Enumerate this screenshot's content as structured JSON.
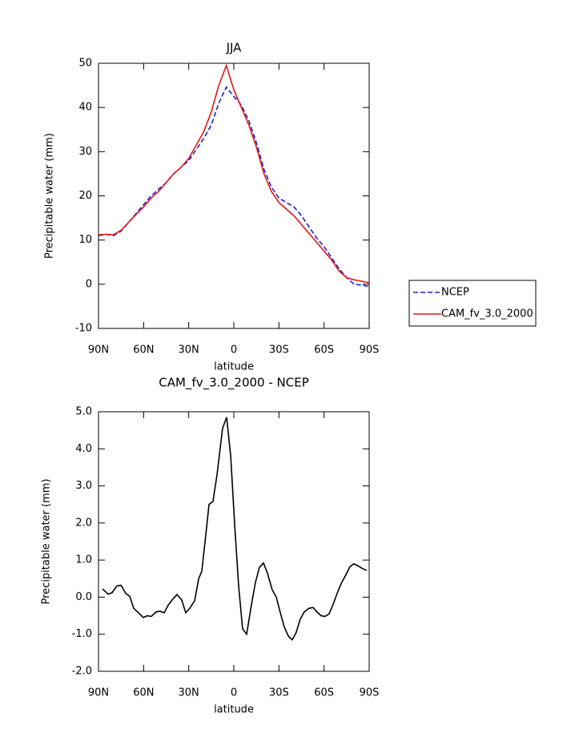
{
  "chart_data": [
    {
      "type": "line",
      "title": "JJA",
      "ylabel": "Precipitable water (mm)",
      "xlabel": "latitude",
      "x": [
        90,
        85,
        80,
        75,
        70,
        65,
        60,
        55,
        50,
        45,
        40,
        35,
        30,
        25,
        20,
        15,
        10,
        5,
        0,
        -5,
        -10,
        -15,
        -20,
        -25,
        -30,
        -35,
        -40,
        -45,
        -50,
        -55,
        -60,
        -65,
        -70,
        -75,
        -80,
        -85,
        -90
      ],
      "series": [
        {
          "name": "NCEP",
          "color": "#1f1fd0",
          "dash": true,
          "values": [
            11,
            11.3,
            11,
            12,
            14,
            16,
            18,
            20,
            21.5,
            23,
            25,
            26.5,
            28,
            30.5,
            33,
            36,
            41,
            44.6,
            42.5,
            40.5,
            37,
            32,
            26,
            22,
            19.5,
            18.5,
            17.5,
            15.5,
            13,
            10.5,
            8.5,
            6,
            3.5,
            1.5,
            0,
            -0.2,
            -0.5
          ]
        },
        {
          "name": "CAM_fv_3.0_2000",
          "color": "#e01818",
          "dash": false,
          "values": [
            11.2,
            11.3,
            11.2,
            12.2,
            14,
            15.8,
            17.5,
            19.5,
            21,
            23,
            25,
            26.5,
            28.5,
            31.5,
            34.5,
            39,
            45,
            49.5,
            44,
            40,
            36,
            31,
            25,
            21,
            18.5,
            17,
            15.5,
            13.5,
            11.5,
            9.5,
            7.5,
            5.5,
            3,
            1.5,
            1,
            0.7,
            0.3
          ]
        }
      ],
      "xlim": [
        90,
        -90
      ],
      "xticks": [
        {
          "value": 90,
          "label": "90N"
        },
        {
          "value": 60,
          "label": "60N"
        },
        {
          "value": 30,
          "label": "30N"
        },
        {
          "value": 0,
          "label": "0"
        },
        {
          "value": -30,
          "label": "30S"
        },
        {
          "value": -60,
          "label": "60S"
        },
        {
          "value": -90,
          "label": "90S"
        }
      ],
      "ylim": [
        -10,
        50
      ],
      "yticks": [
        -10,
        0,
        10,
        20,
        30,
        40,
        50
      ],
      "legend": "outside right"
    },
    {
      "type": "line",
      "title": "CAM_fv_3.0_2000 - NCEP",
      "ylabel": "Precipitable water (mm)",
      "xlabel": "latitude",
      "x": [
        87.3,
        83.6,
        81,
        77.8,
        75,
        71.9,
        69.2,
        66.6,
        63.4,
        60.2,
        57.5,
        54.9,
        51.7,
        49,
        46.3,
        43.7,
        40.5,
        37.8,
        34.6,
        32,
        29.3,
        26.1,
        23.4,
        21.3,
        18.6,
        16.5,
        13.9,
        11.2,
        7.5,
        4.8,
        2.1,
        -0.5,
        -3.2,
        -5.8,
        -8.5,
        -11.7,
        -14.4,
        -17,
        -19.7,
        -22.3,
        -25.5,
        -28.2,
        -30.8,
        -33.5,
        -36.2,
        -38.8,
        -41.5,
        -44.1,
        -46.8,
        -50,
        -52.7,
        -55.3,
        -58,
        -60.6,
        -63.3,
        -66,
        -69.1,
        -71.8,
        -74.5,
        -77.1,
        -79.8,
        -82.4,
        -85.1,
        -88.3
      ],
      "values": [
        0.22,
        0.08,
        0.12,
        0.3,
        0.32,
        0.1,
        0.02,
        -0.3,
        -0.42,
        -0.55,
        -0.5,
        -0.52,
        -0.4,
        -0.38,
        -0.42,
        -0.22,
        -0.05,
        0.07,
        -0.08,
        -0.42,
        -0.3,
        -0.1,
        0.5,
        0.7,
        1.7,
        2.5,
        2.58,
        3.3,
        4.55,
        4.85,
        3.8,
        2,
        0.3,
        -0.85,
        -1,
        -0.2,
        0.4,
        0.8,
        0.92,
        0.65,
        0.2,
        0,
        -0.4,
        -0.8,
        -1.05,
        -1.15,
        -0.95,
        -0.6,
        -0.4,
        -0.3,
        -0.28,
        -0.4,
        -0.5,
        -0.52,
        -0.45,
        -0.2,
        0.15,
        0.4,
        0.6,
        0.82,
        0.9,
        0.85,
        0.78,
        0.72
      ],
      "color": "#000000",
      "xlim": [
        90,
        -90
      ],
      "xticks": [
        {
          "value": 90,
          "label": "90N"
        },
        {
          "value": 60,
          "label": "60N"
        },
        {
          "value": 30,
          "label": "30N"
        },
        {
          "value": 0,
          "label": "0"
        },
        {
          "value": -30,
          "label": "30S"
        },
        {
          "value": -60,
          "label": "60S"
        },
        {
          "value": -90,
          "label": "90S"
        }
      ],
      "ylim": [
        -2,
        5
      ],
      "yticks": [
        {
          "value": -2,
          "label": "-2.0"
        },
        {
          "value": -1,
          "label": "-1.0"
        },
        {
          "value": 0,
          "label": "0.0"
        },
        {
          "value": 1,
          "label": "1.0"
        },
        {
          "value": 2,
          "label": "2.0"
        },
        {
          "value": 3,
          "label": "3.0"
        },
        {
          "value": 4,
          "label": "4.0"
        },
        {
          "value": 5,
          "label": "5.0"
        }
      ]
    }
  ]
}
